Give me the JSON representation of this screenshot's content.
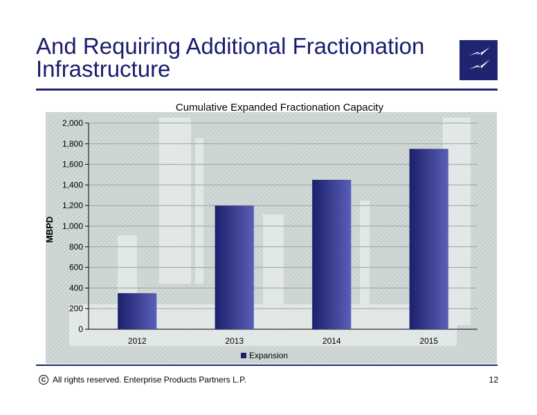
{
  "slide": {
    "title_line1": "And Requiring Additional Fractionation",
    "title_line2": "Infrastructure",
    "footer": "All rights reserved. Enterprise Products Partners L.P.",
    "page_number": "12"
  },
  "colors": {
    "brand_navy": "#1f2470",
    "bar_dark": "#1c1f6a",
    "bar_light": "#5a5fb8"
  },
  "chart_data": {
    "type": "bar",
    "title": "Cumulative Expanded Fractionation Capacity",
    "xlabel": "",
    "ylabel": "MBPD",
    "categories": [
      "2012",
      "2013",
      "2014",
      "2015"
    ],
    "series": [
      {
        "name": "Expansion",
        "values": [
          350,
          1200,
          1450,
          1750
        ]
      }
    ],
    "ylim": [
      0,
      2000
    ],
    "yticks": [
      0,
      200,
      400,
      600,
      800,
      1000,
      1200,
      1400,
      1600,
      1800,
      2000
    ],
    "ytick_labels": [
      "0",
      "200",
      "400",
      "600",
      "800",
      "1,000",
      "1,200",
      "1,400",
      "1,600",
      "1,800",
      "2,000"
    ],
    "grid": true,
    "legend": "bottom"
  }
}
